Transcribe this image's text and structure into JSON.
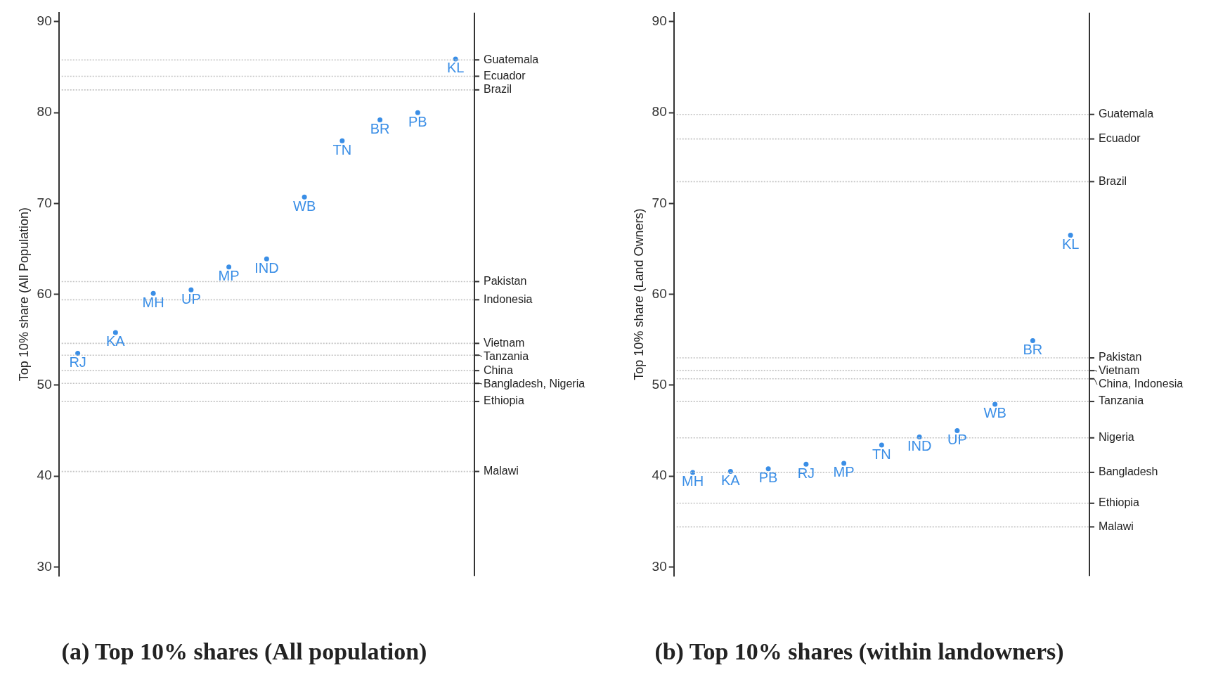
{
  "chart_data": [
    {
      "type": "scatter",
      "title": "(a) Top 10% shares (All population)",
      "ylabel": "Top 10% share (All Population)",
      "categories": [
        "RJ",
        "KA",
        "MH",
        "UP",
        "MP",
        "IND",
        "WB",
        "TN",
        "BR",
        "PB",
        "KL"
      ],
      "series": [
        {
          "color": "#3a8ee6",
          "values": [
            53.5,
            55.8,
            60.1,
            60.5,
            63.0,
            63.9,
            70.7,
            76.9,
            79.2,
            80.0,
            85.9
          ]
        }
      ],
      "ylim": [
        29,
        91
      ],
      "yticks": [
        30,
        40,
        50,
        60,
        70,
        80,
        90
      ],
      "grid": false,
      "legend": false,
      "marker": "circle",
      "tick_labels": "y",
      "ref_lines": [
        {
          "axis": "y",
          "value": 85.8,
          "label": "Guatemala"
        },
        {
          "axis": "y",
          "value": 84.0,
          "label": "Ecuador"
        },
        {
          "axis": "y",
          "value": 82.5,
          "label": "Brazil"
        },
        {
          "axis": "y",
          "value": 61.4,
          "label": "Pakistan"
        },
        {
          "axis": "y",
          "value": 59.4,
          "label": "Indonesia"
        },
        {
          "axis": "y",
          "value": 54.6,
          "label": "Vietnam"
        },
        {
          "axis": "y",
          "value": 53.3,
          "label": "Tanzania"
        },
        {
          "axis": "y",
          "value": 51.6,
          "label": "China"
        },
        {
          "axis": "y",
          "value": 50.2,
          "label": "Bangladesh, Nigeria"
        },
        {
          "axis": "y",
          "value": 48.2,
          "label": "Ethiopia"
        },
        {
          "axis": "y",
          "value": 40.5,
          "label": "Malawi"
        }
      ]
    },
    {
      "type": "scatter",
      "title": "(b) Top 10% shares (within landowners)",
      "ylabel": "Top 10% share (Land Owners)",
      "categories": [
        "MH",
        "KA",
        "PB",
        "RJ",
        "MP",
        "TN",
        "IND",
        "UP",
        "WB",
        "BR",
        "KL"
      ],
      "series": [
        {
          "color": "#3a8ee6",
          "values": [
            40.4,
            40.5,
            40.8,
            41.3,
            41.4,
            43.4,
            44.3,
            45.0,
            47.9,
            54.9,
            66.5
          ]
        }
      ],
      "ylim": [
        29,
        91
      ],
      "yticks": [
        30,
        40,
        50,
        60,
        70,
        80,
        90
      ],
      "grid": false,
      "legend": false,
      "marker": "circle",
      "tick_labels": "y",
      "ref_lines": [
        {
          "axis": "y",
          "value": 79.8,
          "label": "Guatemala"
        },
        {
          "axis": "y",
          "value": 77.1,
          "label": "Ecuador"
        },
        {
          "axis": "y",
          "value": 72.4,
          "label": "Brazil"
        },
        {
          "axis": "y",
          "value": 53.0,
          "label": "Pakistan"
        },
        {
          "axis": "y",
          "value": 51.6,
          "label": "Vietnam"
        },
        {
          "axis": "y",
          "value": 50.7,
          "label": "China, Indonesia"
        },
        {
          "axis": "y",
          "value": 48.2,
          "label": "Tanzania"
        },
        {
          "axis": "y",
          "value": 44.2,
          "label": "Nigeria"
        },
        {
          "axis": "y",
          "value": 40.4,
          "label": "Bangladesh"
        },
        {
          "axis": "y",
          "value": 37.0,
          "label": "Ethiopia"
        },
        {
          "axis": "y",
          "value": 34.4,
          "label": "Malawi"
        }
      ]
    }
  ]
}
